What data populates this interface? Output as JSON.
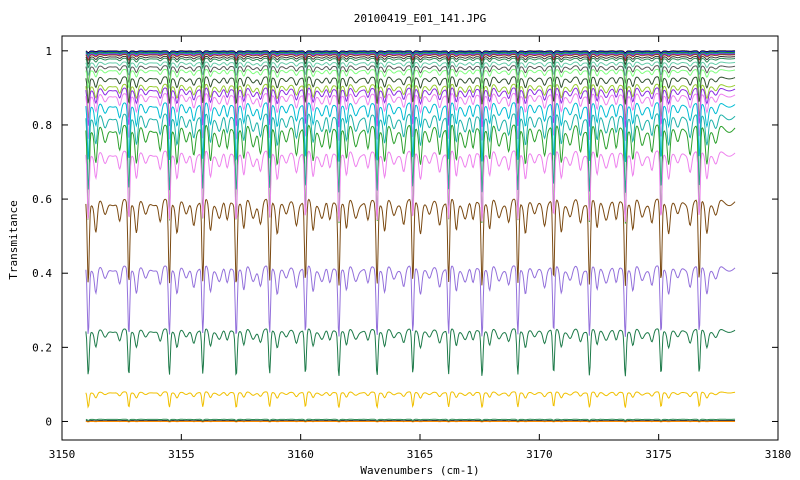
{
  "chart_data": {
    "type": "line",
    "title": "20100419_E01_141.JPG",
    "xlabel": "Wavenumbers (cm-1)",
    "ylabel": "Transmitance",
    "xlim": [
      3150,
      3180
    ],
    "ylim": [
      -0.05,
      1.04
    ],
    "x_ticks": [
      3150,
      3155,
      3160,
      3165,
      3170,
      3175,
      3180
    ],
    "y_ticks": [
      0,
      0.2,
      0.4,
      0.6,
      0.8,
      1
    ],
    "x_tick_labels": [
      "3150",
      "3155",
      "3160",
      "3165",
      "3170",
      "3175",
      "3180"
    ],
    "y_tick_labels": [
      "0",
      "0.2",
      "0.4",
      "0.6",
      "0.8",
      "1"
    ],
    "x_range": [
      3151.0,
      3178.2
    ],
    "grid": false,
    "legend": "none",
    "absorption_lines": [
      3151.1,
      3152.8,
      3154.5,
      3155.9,
      3157.3,
      3158.7,
      3160.2,
      3161.6,
      3163.2,
      3164.7,
      3166.2,
      3167.6,
      3169.1,
      3170.6,
      3172.1,
      3173.6,
      3175.1,
      3176.7
    ],
    "series": [
      {
        "baseline": 1.0,
        "depth": 0.005,
        "color": "#000000"
      },
      {
        "baseline": 0.998,
        "depth": 0.006,
        "color": "#1e1ef0"
      },
      {
        "baseline": 0.996,
        "depth": 0.008,
        "color": "#228b22"
      },
      {
        "baseline": 0.994,
        "depth": 0.01,
        "color": "#00a0a0"
      },
      {
        "baseline": 0.992,
        "depth": 0.012,
        "color": "#a020f0"
      },
      {
        "baseline": 0.99,
        "depth": 0.015,
        "color": "#8b4513"
      },
      {
        "baseline": 0.985,
        "depth": 0.02,
        "color": "#333333"
      },
      {
        "baseline": 0.98,
        "depth": 0.025,
        "color": "#2e8b57"
      },
      {
        "baseline": 0.97,
        "depth": 0.035,
        "color": "#66cdaa"
      },
      {
        "baseline": 0.96,
        "depth": 0.045,
        "color": "#555555"
      },
      {
        "baseline": 0.95,
        "depth": 0.05,
        "color": "#7fff7f"
      },
      {
        "baseline": 0.93,
        "depth": 0.07,
        "color": "#2f4f2f"
      },
      {
        "baseline": 0.91,
        "depth": 0.09,
        "color": "#9acd32"
      },
      {
        "baseline": 0.9,
        "depth": 0.1,
        "color": "#8a2be2"
      },
      {
        "baseline": 0.885,
        "depth": 0.12,
        "color": "#ee82ee"
      },
      {
        "baseline": 0.86,
        "depth": 0.15,
        "color": "#00bcd4"
      },
      {
        "baseline": 0.83,
        "depth": 0.2,
        "color": "#20b2aa"
      },
      {
        "baseline": 0.8,
        "depth": 0.25,
        "color": "#2ca02c"
      },
      {
        "baseline": 0.73,
        "depth": 0.18,
        "color": "#ee82ee"
      },
      {
        "baseline": 0.6,
        "depth": 0.22,
        "color": "#7b4a12"
      },
      {
        "baseline": 0.42,
        "depth": 0.18,
        "color": "#9370db"
      },
      {
        "baseline": 0.25,
        "depth": 0.12,
        "color": "#1e7b4a"
      },
      {
        "baseline": 0.08,
        "depth": 0.04,
        "color": "#f0c000"
      },
      {
        "baseline": 0.006,
        "depth": 0.003,
        "color": "#2e8b57"
      },
      {
        "baseline": 0.002,
        "depth": 0.002,
        "color": "#000000"
      },
      {
        "baseline": 0.0,
        "depth": 0.001,
        "color": "#ff8c00"
      }
    ]
  }
}
